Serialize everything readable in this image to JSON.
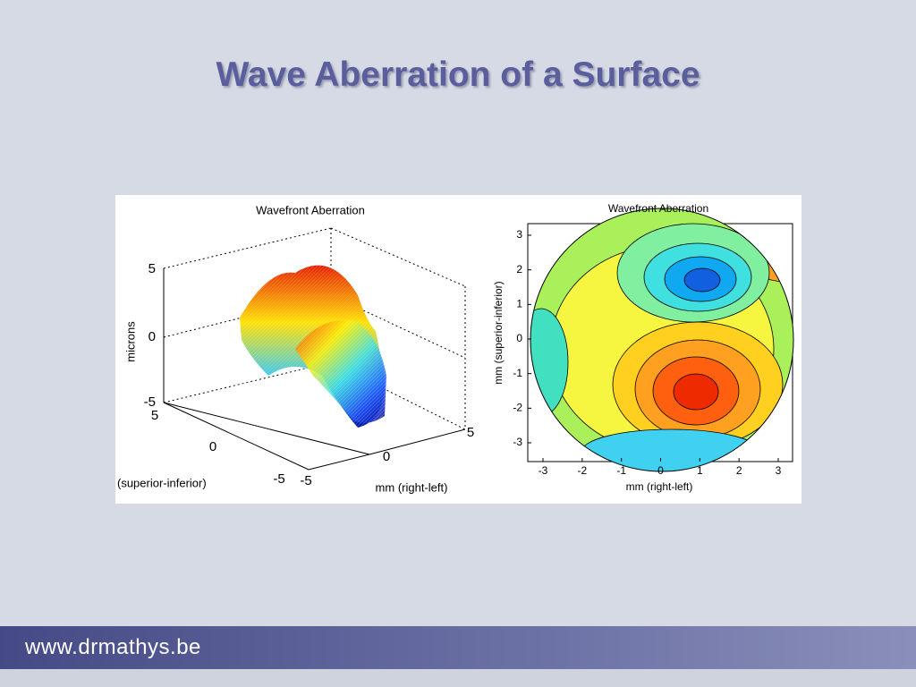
{
  "title": "Wave Aberration of a Surface",
  "figures": [
    {
      "title": "Wavefront Aberration",
      "z_label": "microns",
      "z_ticks": [
        "5",
        "0",
        "-5"
      ],
      "y_label": "(superior-inferior)",
      "y_ticks": [
        "5",
        "0",
        "-5"
      ],
      "x_label": "mm (right-left)",
      "x_ticks": [
        "-5",
        "0",
        "5"
      ]
    },
    {
      "title": "Wavefront Aberration",
      "y_label": "mm (superior-inferior)",
      "y_ticks": [
        "3",
        "2",
        "1",
        "0",
        "-1",
        "-2",
        "-3"
      ],
      "x_label": "mm (right-left)",
      "x_ticks": [
        "-3",
        "-2",
        "-1",
        "0",
        "1",
        "2",
        "3"
      ]
    }
  ],
  "footer": "www.drmathys.be"
}
